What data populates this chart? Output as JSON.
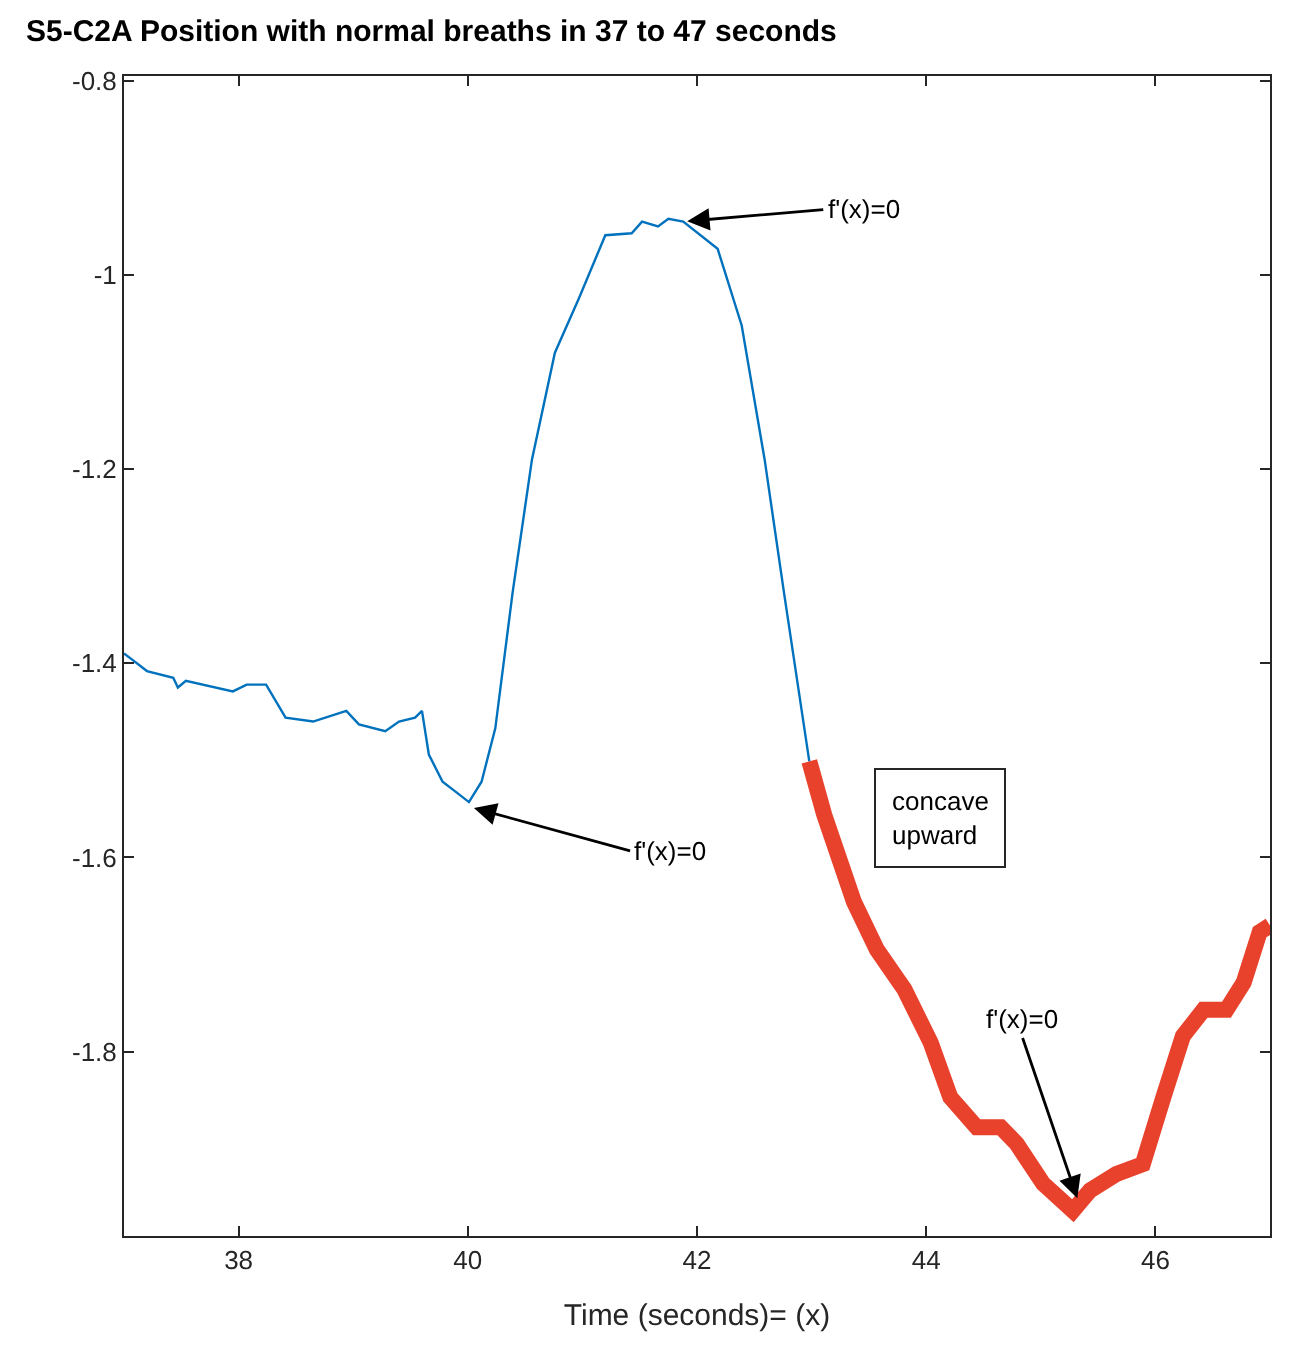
{
  "chart_data": {
    "type": "line",
    "title": "S5-C2A Position with normal breaths in 37 to 47 seconds",
    "xlabel": "Time (seconds)= (x)",
    "xlim": [
      37,
      47
    ],
    "ylim": [
      -1.99,
      -0.795
    ],
    "xticks": [
      38,
      40,
      42,
      44,
      46
    ],
    "yticks": [
      -1.8,
      -1.6,
      -1.4,
      -1.2,
      -1,
      -0.8
    ],
    "line_style": "solid",
    "marker": "none",
    "series": [
      {
        "color": "#0072bd",
        "x": [
          37.0,
          37.08,
          37.2,
          37.43,
          37.47,
          37.54,
          37.95,
          38.07,
          38.24,
          38.41,
          38.65,
          38.94,
          39.05,
          39.28,
          39.4,
          39.54,
          39.6,
          39.66,
          39.78,
          39.89,
          40.01,
          40.12,
          40.24,
          40.39,
          40.56,
          40.76,
          40.97,
          41.2,
          41.43,
          41.52,
          41.66,
          41.75,
          41.88,
          42.18,
          42.39,
          42.59,
          42.76,
          42.98
        ],
        "values": [
          -1.39,
          -1.397,
          -1.408,
          -1.415,
          -1.425,
          -1.418,
          -1.429,
          -1.422,
          -1.422,
          -1.456,
          -1.46,
          -1.449,
          -1.463,
          -1.47,
          -1.46,
          -1.456,
          -1.449,
          -1.494,
          -1.522,
          -1.532,
          -1.543,
          -1.522,
          -1.467,
          -1.328,
          -1.19,
          -1.08,
          -1.024,
          -0.959,
          -0.957,
          -0.945,
          -0.95,
          -0.942,
          -0.945,
          -0.973,
          -1.052,
          -1.19,
          -1.328,
          -1.501
        ]
      },
      {
        "color": "#e8412c",
        "x": [
          42.98,
          43.11,
          43.37,
          43.57,
          43.81,
          44.04,
          44.21,
          44.44,
          44.65,
          44.79,
          45.02,
          45.28,
          45.43,
          45.66,
          45.89,
          46.07,
          46.24,
          46.42,
          46.62,
          46.77,
          46.91,
          47.0
        ],
        "values": [
          -1.501,
          -1.556,
          -1.646,
          -1.695,
          -1.736,
          -1.791,
          -1.847,
          -1.878,
          -1.878,
          -1.895,
          -1.936,
          -1.964,
          -1.943,
          -1.926,
          -1.916,
          -1.847,
          -1.784,
          -1.757,
          -1.757,
          -1.729,
          -1.677,
          -1.67
        ]
      }
    ],
    "annotations": [
      {
        "text": "f'(x)=0",
        "x": 41.88,
        "y": -0.945
      },
      {
        "text": "f'(x)=0",
        "x": 40.02,
        "y": -1.548
      },
      {
        "text": "f'(x)=0",
        "x": 45.33,
        "y": -1.955
      },
      "concave\nupward"
    ]
  }
}
